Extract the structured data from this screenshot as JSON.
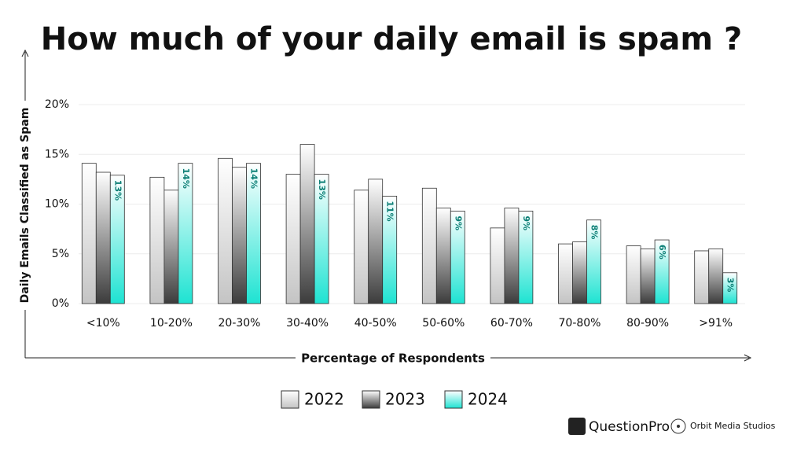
{
  "chart_data": {
    "type": "bar",
    "title": "How much of your daily email is spam ?",
    "y_label": "Daily Emails Classified as Spam",
    "x_label": "Percentage of Respondents",
    "categories": [
      "<10%",
      "10-20%",
      "20-30%",
      "30-40%",
      "40-50%",
      "50-60%",
      "60-70%",
      "70-80%",
      "80-90%",
      ">91%"
    ],
    "series": [
      {
        "name": "2022",
        "color": "#c4c4c4",
        "values": [
          14.1,
          12.7,
          14.6,
          13.0,
          11.4,
          11.6,
          7.6,
          6.0,
          5.8,
          5.3
        ]
      },
      {
        "name": "2023",
        "color": "#3c3c3c",
        "values": [
          13.2,
          11.4,
          13.7,
          16.0,
          12.5,
          9.6,
          9.6,
          6.2,
          5.5,
          5.5
        ]
      },
      {
        "name": "2024",
        "color": "#1ee3d2",
        "values": [
          12.9,
          14.1,
          14.1,
          13.0,
          10.8,
          9.3,
          9.3,
          8.4,
          6.4,
          3.1
        ],
        "value_labels": [
          "13%",
          "14%",
          "14%",
          "13%",
          "11%",
          "9%",
          "9%",
          "8%",
          "6%",
          "3%"
        ]
      }
    ],
    "ylim": [
      0,
      20
    ],
    "yticks": [
      {
        "value": 0,
        "label": "0%"
      },
      {
        "value": 5,
        "label": "5%"
      },
      {
        "value": 10,
        "label": "10%"
      },
      {
        "value": 15,
        "label": "15%"
      },
      {
        "value": 20,
        "label": "20%"
      }
    ],
    "grid": true,
    "legend": "bottom",
    "logos": [
      "QuestionPro",
      "Orbit Media Studios"
    ]
  }
}
